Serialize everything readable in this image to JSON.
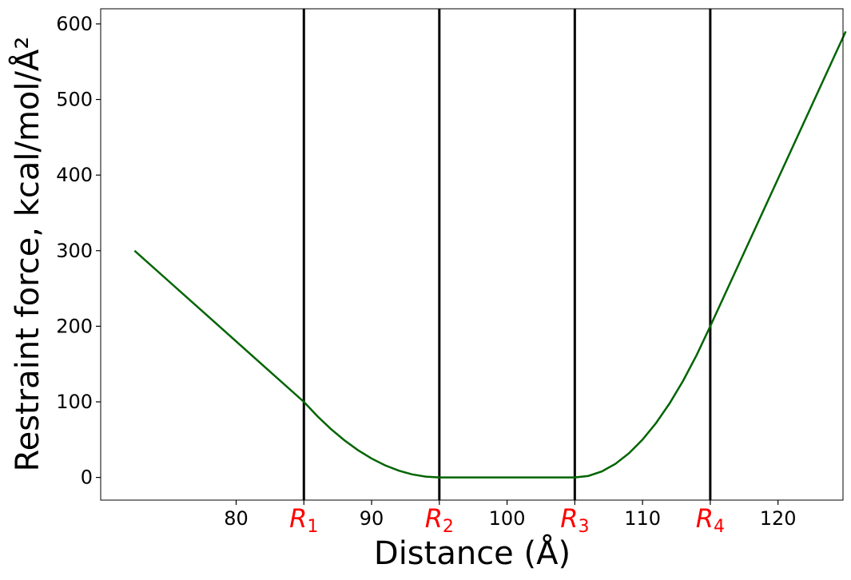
{
  "chart_data": {
    "type": "line",
    "xlabel": "Distance (Å)",
    "ylabel": "Restraint force, kcal/mol/Å²",
    "xlim": [
      70.0,
      124.8
    ],
    "ylim": [
      -30,
      620
    ],
    "x_ticks": [
      80,
      90,
      100,
      110,
      120
    ],
    "y_ticks": [
      0,
      100,
      200,
      300,
      400,
      500,
      600
    ],
    "grid": false,
    "legend": "none",
    "markers": [
      {
        "label": "R",
        "sub": "1",
        "x": 85
      },
      {
        "label": "R",
        "sub": "2",
        "x": 95
      },
      {
        "label": "R",
        "sub": "3",
        "x": 105
      },
      {
        "label": "R",
        "sub": "4",
        "x": 115
      }
    ],
    "series": [
      {
        "color": "#006400",
        "x": [
          72.5,
          75,
          77.5,
          80,
          82.5,
          85,
          86,
          87,
          88,
          89,
          90,
          91,
          92,
          93,
          94,
          95,
          97.5,
          100,
          102.5,
          105,
          106,
          107,
          108,
          109,
          110,
          111,
          112,
          113,
          114,
          115,
          117.5,
          120,
          122.5,
          125
        ],
        "y": [
          300,
          260,
          220,
          180,
          140,
          100,
          81,
          64,
          49,
          36,
          25,
          16,
          9,
          4,
          1,
          0,
          0,
          0,
          0,
          0,
          2,
          8,
          18,
          32,
          50,
          72,
          98,
          128,
          162,
          200,
          297.5,
          395,
          492.5,
          590
        ]
      }
    ],
    "line_color": "#000000",
    "marker_label_color": "#ff0000"
  }
}
